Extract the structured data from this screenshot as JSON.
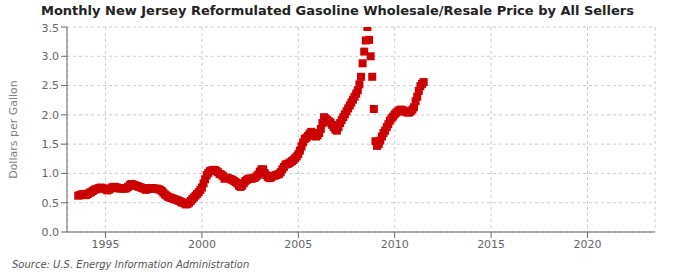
{
  "chart_data": {
    "type": "scatter",
    "title": "Monthly New Jersey Reformulated Gasoline Wholesale/Resale Price by All Sellers",
    "ylabel": "Dollars per Gallon",
    "annotation": "Source: U.S. Energy Information Administration",
    "color": "#CC0000",
    "marker": "square",
    "grid": true,
    "xlim": [
      1993.0,
      2023.5
    ],
    "ylim": [
      0.0,
      3.5
    ],
    "xticks": [
      1995,
      2000,
      2005,
      2010,
      2015,
      2020
    ],
    "yticks": [
      {
        "value": 0.0,
        "label": "0.0"
      },
      0.5,
      {
        "value": 1.0,
        "label": "1.0"
      },
      1.5,
      {
        "value": 2.0,
        "label": "2.0"
      },
      2.5,
      {
        "value": 3.0,
        "label": "3.0"
      },
      3.5
    ],
    "x": [
      1993.583,
      1993.667,
      1993.75,
      1993.833,
      1993.917,
      1994.0,
      1994.083,
      1994.167,
      1994.25,
      1994.333,
      1994.417,
      1994.5,
      1994.583,
      1994.667,
      1994.75,
      1994.833,
      1994.917,
      1995.0,
      1995.083,
      1995.167,
      1995.25,
      1995.333,
      1995.417,
      1995.5,
      1995.583,
      1995.667,
      1995.75,
      1995.833,
      1995.917,
      1996.0,
      1996.083,
      1996.167,
      1996.25,
      1996.333,
      1996.417,
      1996.5,
      1996.583,
      1996.667,
      1996.75,
      1996.833,
      1996.917,
      1997.0,
      1997.083,
      1997.167,
      1997.25,
      1997.333,
      1997.417,
      1997.5,
      1997.583,
      1997.667,
      1997.75,
      1997.833,
      1997.917,
      1998.0,
      1998.083,
      1998.167,
      1998.25,
      1998.333,
      1998.417,
      1998.5,
      1998.583,
      1998.667,
      1998.75,
      1998.833,
      1998.917,
      1999.0,
      1999.083,
      1999.167,
      1999.25,
      1999.333,
      1999.417,
      1999.5,
      1999.583,
      1999.667,
      1999.75,
      1999.833,
      1999.917,
      2000.0,
      2000.083,
      2000.167,
      2000.25,
      2000.333,
      2000.417,
      2000.5,
      2000.583,
      2000.667,
      2000.75,
      2000.833,
      2000.917,
      2001.0,
      2001.083,
      2001.167,
      2001.25,
      2001.333,
      2001.417,
      2001.5,
      2001.583,
      2001.667,
      2001.75,
      2001.833,
      2001.917,
      2002.0,
      2002.083,
      2002.167,
      2002.25,
      2002.333,
      2002.417,
      2002.5,
      2002.583,
      2002.667,
      2002.75,
      2002.833,
      2002.917,
      2003.0,
      2003.083,
      2003.167,
      2003.25,
      2003.333,
      2003.417,
      2003.5,
      2003.583,
      2003.667,
      2003.75,
      2003.833,
      2003.917,
      2004.0,
      2004.083,
      2004.167,
      2004.25,
      2004.333,
      2004.417,
      2004.5,
      2004.583,
      2004.667,
      2004.75,
      2004.833,
      2004.917,
      2005.0,
      2005.083,
      2005.167,
      2005.25,
      2005.333,
      2005.417,
      2005.5,
      2005.583,
      2005.667,
      2005.75,
      2005.833,
      2005.917,
      2006.0,
      2006.083,
      2006.167,
      2006.25,
      2006.333,
      2006.417,
      2006.5,
      2006.583,
      2006.667,
      2006.75,
      2006.833,
      2006.917,
      2007.0,
      2007.083,
      2007.167,
      2007.25,
      2007.333,
      2007.417,
      2007.5,
      2007.583,
      2007.667,
      2007.75,
      2007.833,
      2007.917,
      2008.0,
      2008.083,
      2008.167,
      2008.25,
      2008.333,
      2008.417,
      2008.5,
      2008.583,
      2008.667,
      2008.75,
      2008.833,
      2008.917,
      2009.0,
      2009.083,
      2009.167,
      2009.25,
      2009.333,
      2009.417,
      2009.5,
      2009.583,
      2009.667,
      2009.75,
      2009.833,
      2009.917,
      2010.0,
      2010.083,
      2010.167,
      2010.25,
      2010.333,
      2010.417,
      2010.5,
      2010.583,
      2010.667,
      2010.75,
      2010.833,
      2010.917,
      2011.0,
      2011.083,
      2011.167,
      2011.25,
      2011.333,
      2011.417,
      2011.5
    ],
    "values": [
      0.62,
      0.63,
      0.64,
      0.65,
      0.63,
      0.63,
      0.65,
      0.67,
      0.68,
      0.7,
      0.72,
      0.73,
      0.74,
      0.75,
      0.76,
      0.75,
      0.74,
      0.73,
      0.71,
      0.72,
      0.74,
      0.76,
      0.77,
      0.77,
      0.76,
      0.75,
      0.74,
      0.75,
      0.74,
      0.74,
      0.75,
      0.77,
      0.8,
      0.82,
      0.81,
      0.8,
      0.79,
      0.78,
      0.77,
      0.76,
      0.75,
      0.74,
      0.72,
      0.73,
      0.74,
      0.75,
      0.75,
      0.74,
      0.74,
      0.74,
      0.73,
      0.72,
      0.7,
      0.67,
      0.64,
      0.62,
      0.6,
      0.59,
      0.58,
      0.57,
      0.56,
      0.55,
      0.54,
      0.53,
      0.51,
      0.5,
      0.49,
      0.47,
      0.48,
      0.5,
      0.53,
      0.56,
      0.59,
      0.62,
      0.65,
      0.68,
      0.72,
      0.76,
      0.83,
      0.9,
      0.97,
      1.01,
      1.04,
      1.05,
      1.06,
      1.06,
      1.04,
      1.02,
      0.99,
      0.98,
      0.96,
      0.91,
      0.93,
      0.92,
      0.91,
      0.9,
      0.89,
      0.87,
      0.85,
      0.83,
      0.79,
      0.77,
      0.79,
      0.83,
      0.87,
      0.89,
      0.91,
      0.91,
      0.91,
      0.92,
      0.93,
      0.95,
      0.98,
      1.03,
      1.07,
      1.07,
      1.01,
      0.97,
      0.94,
      0.92,
      0.93,
      0.95,
      0.96,
      0.97,
      0.98,
      0.99,
      1.02,
      1.07,
      1.11,
      1.15,
      1.16,
      1.17,
      1.19,
      1.21,
      1.23,
      1.26,
      1.29,
      1.33,
      1.39,
      1.46,
      1.53,
      1.59,
      1.61,
      1.64,
      1.68,
      1.71,
      1.69,
      1.65,
      1.63,
      1.65,
      1.69,
      1.76,
      1.86,
      1.96,
      1.94,
      1.91,
      1.89,
      1.87,
      1.83,
      1.79,
      1.75,
      1.73,
      1.79,
      1.86,
      1.91,
      1.96,
      2.01,
      2.06,
      2.11,
      2.16,
      2.21,
      2.26,
      2.31,
      2.36,
      2.42,
      2.52,
      2.65,
      2.88,
      3.08,
      3.27,
      3.5,
      3.28,
      3.0,
      2.65,
      2.1,
      1.55,
      1.47,
      1.5,
      1.56,
      1.63,
      1.69,
      1.73,
      1.79,
      1.84,
      1.9,
      1.94,
      1.97,
      2.01,
      2.04,
      2.06,
      2.08,
      2.09,
      2.08,
      2.06,
      2.05,
      2.04,
      2.04,
      2.06,
      2.09,
      2.13,
      2.23,
      2.31,
      2.41,
      2.49,
      2.53,
      2.56
    ]
  }
}
